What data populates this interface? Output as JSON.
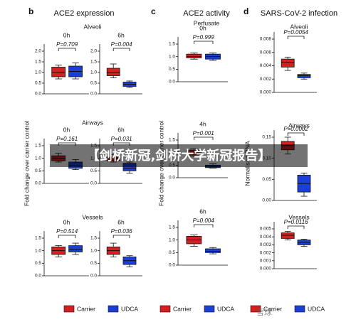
{
  "panels": [
    {
      "letter": "b",
      "title": "ACE2 expression",
      "ylabel": "Fold change over carrier control"
    },
    {
      "letter": "c",
      "title": "ACE2 activity",
      "ylabel": "Fold change over carrier control"
    },
    {
      "letter": "d",
      "title": "SARS-CoV-2 infection",
      "ylabel": "Normalised RNA"
    }
  ],
  "groups": [
    "Alveoli",
    "Airways",
    "Vessels",
    "Perfusate",
    "Alveoli",
    "Airways",
    "Vessels"
  ],
  "banner": "【剑桥新冠,剑桥大学新冠报告】",
  "watermark": "雪球",
  "chart_data": [
    {
      "type": "box",
      "title": "0h",
      "pvalue": "P=0.709",
      "ylim": [
        0,
        2
      ],
      "yticks": [
        {
          "value": 0,
          "label": "0.0"
        },
        0.5,
        {
          "value": 1,
          "label": "1.0"
        },
        1.5,
        {
          "value": 2,
          "label": "2.0"
        }
      ],
      "series": [
        {
          "name": "Carrier",
          "color": "#d42020",
          "box": {
            "lo": 0.7,
            "q1": 0.8,
            "median": 1.0,
            "q3": 1.25,
            "hi": 1.35
          }
        },
        {
          "name": "UDCA",
          "color": "#1a3fd6",
          "box": {
            "lo": 0.7,
            "q1": 0.8,
            "median": 1.05,
            "q3": 1.3,
            "hi": 1.45
          }
        }
      ]
    },
    {
      "type": "box",
      "title": "6h",
      "pvalue": "P=0.004",
      "ylim": [
        0,
        2
      ],
      "yticks": [
        {
          "value": 0,
          "label": "0.0"
        },
        0.5,
        {
          "value": 1,
          "label": "1.0"
        },
        1.5,
        {
          "value": 2,
          "label": "2.0"
        }
      ],
      "series": [
        {
          "name": "Carrier",
          "color": "#d42020",
          "box": {
            "lo": 0.75,
            "q1": 0.85,
            "median": 1.0,
            "q3": 1.2,
            "hi": 1.4
          }
        },
        {
          "name": "UDCA",
          "color": "#1a3fd6",
          "box": {
            "lo": 0.3,
            "q1": 0.35,
            "median": 0.45,
            "q3": 0.55,
            "hi": 0.6
          }
        }
      ]
    },
    {
      "type": "box",
      "title": "0h",
      "pvalue": "P=0.161",
      "ylim": [
        0,
        1.5
      ],
      "yticks": [
        {
          "value": 0,
          "label": "0.0"
        },
        0.5,
        {
          "value": 1,
          "label": "1.0"
        },
        1.5
      ],
      "series": [
        {
          "name": "Carrier",
          "color": "#d42020",
          "box": {
            "lo": 0.85,
            "q1": 0.9,
            "median": 1.0,
            "q3": 1.1,
            "hi": 1.2
          }
        },
        {
          "name": "UDCA",
          "color": "#1a3fd6",
          "box": {
            "lo": 0.55,
            "q1": 0.6,
            "median": 0.7,
            "q3": 0.85,
            "hi": 0.95
          }
        }
      ]
    },
    {
      "type": "box",
      "title": "6h",
      "pvalue": "P=0.031",
      "ylim": [
        0,
        1.5
      ],
      "yticks": [
        {
          "value": 0,
          "label": "0.0"
        },
        0.5,
        {
          "value": 1,
          "label": "1.0"
        },
        1.5
      ],
      "series": [
        {
          "name": "Carrier",
          "color": "#d42020",
          "box": {
            "lo": 0.85,
            "q1": 0.9,
            "median": 1.0,
            "q3": 1.05,
            "hi": 1.15
          }
        },
        {
          "name": "UDCA",
          "color": "#1a3fd6",
          "box": {
            "lo": 0.4,
            "q1": 0.5,
            "median": 0.6,
            "q3": 0.8,
            "hi": 0.85
          }
        }
      ]
    },
    {
      "type": "box",
      "title": "0h",
      "pvalue": "P=0.514",
      "ylim": [
        0,
        1.5
      ],
      "yticks": [
        {
          "value": 0,
          "label": "0.0"
        },
        0.5,
        {
          "value": 1,
          "label": "1.0"
        },
        1.5
      ],
      "series": [
        {
          "name": "Carrier",
          "color": "#d42020",
          "box": {
            "lo": 0.75,
            "q1": 0.85,
            "median": 1.0,
            "q3": 1.15,
            "hi": 1.2
          }
        },
        {
          "name": "UDCA",
          "color": "#1a3fd6",
          "box": {
            "lo": 0.85,
            "q1": 0.95,
            "median": 1.05,
            "q3": 1.2,
            "hi": 1.3
          }
        }
      ]
    },
    {
      "type": "box",
      "title": "6h",
      "pvalue": "P=0.036",
      "ylim": [
        0,
        1.5
      ],
      "yticks": [
        {
          "value": 0,
          "label": "0.0"
        },
        0.5,
        {
          "value": 1,
          "label": "1.0"
        },
        1.5
      ],
      "series": [
        {
          "name": "Carrier",
          "color": "#d42020",
          "box": {
            "lo": 0.75,
            "q1": 0.85,
            "median": 1.0,
            "q3": 1.15,
            "hi": 1.3
          }
        },
        {
          "name": "UDCA",
          "color": "#1a3fd6",
          "box": {
            "lo": 0.35,
            "q1": 0.45,
            "median": 0.6,
            "q3": 0.75,
            "hi": 0.8
          }
        }
      ]
    },
    {
      "type": "box",
      "title": "0h",
      "pvalue": "P=0.999",
      "ylim": [
        0,
        1.5
      ],
      "yticks": [
        {
          "value": 0,
          "label": "0.0"
        },
        0.5,
        {
          "value": 1,
          "label": "1.0"
        },
        1.5
      ],
      "series": [
        {
          "name": "Carrier",
          "color": "#d42020",
          "box": {
            "lo": 0.9,
            "q1": 0.95,
            "median": 1.0,
            "q3": 1.1,
            "hi": 1.15
          }
        },
        {
          "name": "UDCA",
          "color": "#1a3fd6",
          "box": {
            "lo": 0.85,
            "q1": 0.9,
            "median": 1.0,
            "q3": 1.1,
            "hi": 1.15
          }
        }
      ]
    },
    {
      "type": "box",
      "title": "4h",
      "pvalue": "P=0.001",
      "ylim": [
        0,
        1.5
      ],
      "yticks": [
        {
          "value": 0,
          "label": "0.0"
        },
        0.5,
        {
          "value": 1,
          "label": "1.0"
        },
        1.5
      ],
      "series": [
        {
          "name": "Carrier",
          "color": "#d42020",
          "box": {
            "lo": 0.85,
            "q1": 0.9,
            "median": 1.0,
            "q3": 1.1,
            "hi": 1.15
          }
        },
        {
          "name": "UDCA",
          "color": "#1a3fd6",
          "box": {
            "lo": 0.38,
            "q1": 0.4,
            "median": 0.45,
            "q3": 0.5,
            "hi": 0.55
          }
        }
      ]
    },
    {
      "type": "box",
      "title": "6h",
      "pvalue": "P=0.004",
      "ylim": [
        0,
        1.5
      ],
      "yticks": [
        {
          "value": 0,
          "label": "0.0"
        },
        0.5,
        {
          "value": 1,
          "label": "1.0"
        },
        1.5
      ],
      "series": [
        {
          "name": "Carrier",
          "color": "#d42020",
          "box": {
            "lo": 0.75,
            "q1": 0.85,
            "median": 1.0,
            "q3": 1.15,
            "hi": 1.2
          }
        },
        {
          "name": "UDCA",
          "color": "#1a3fd6",
          "box": {
            "lo": 0.45,
            "q1": 0.5,
            "median": 0.55,
            "q3": 0.65,
            "hi": 0.7
          }
        }
      ]
    },
    {
      "type": "box",
      "title": "",
      "pvalue": "P=0.0054",
      "ylim": [
        0,
        0.008
      ],
      "yticks": [
        {
          "value": 0,
          "label": "0.000"
        },
        0.002,
        0.004,
        0.006,
        0.008
      ],
      "series": [
        {
          "name": "Carrier",
          "color": "#d42020",
          "box": {
            "lo": 0.0033,
            "q1": 0.0038,
            "median": 0.0045,
            "q3": 0.005,
            "hi": 0.0053
          }
        },
        {
          "name": "UDCA",
          "color": "#1a3fd6",
          "box": {
            "lo": 0.002,
            "q1": 0.0022,
            "median": 0.0025,
            "q3": 0.0027,
            "hi": 0.0029
          }
        }
      ]
    },
    {
      "type": "box",
      "title": "",
      "pvalue": "P=0.0002",
      "ylim": [
        0,
        0.15
      ],
      "yticks": [
        {
          "value": 0,
          "label": "0.00"
        },
        0.05,
        {
          "value": 0.1,
          "label": "0.10"
        },
        0.15
      ],
      "series": [
        {
          "name": "Carrier",
          "color": "#d42020",
          "box": {
            "lo": 0.11,
            "q1": 0.12,
            "median": 0.13,
            "q3": 0.14,
            "hi": 0.15
          }
        },
        {
          "name": "UDCA",
          "color": "#1a3fd6",
          "box": {
            "lo": 0.01,
            "q1": 0.02,
            "median": 0.04,
            "q3": 0.06,
            "hi": 0.065
          }
        }
      ]
    },
    {
      "type": "box",
      "title": "",
      "pvalue": "P=0.0116",
      "ylim": [
        0,
        0.005
      ],
      "yticks": [
        {
          "value": 0,
          "label": "0.000"
        },
        0.001,
        0.002,
        0.003,
        0.004,
        0.005
      ],
      "series": [
        {
          "name": "Carrier",
          "color": "#d42020",
          "box": {
            "lo": 0.0036,
            "q1": 0.0038,
            "median": 0.0042,
            "q3": 0.0045,
            "hi": 0.0047
          }
        },
        {
          "name": "UDCA",
          "color": "#1a3fd6",
          "box": {
            "lo": 0.0028,
            "q1": 0.003,
            "median": 0.0033,
            "q3": 0.0036,
            "hi": 0.0037
          }
        }
      ]
    }
  ]
}
